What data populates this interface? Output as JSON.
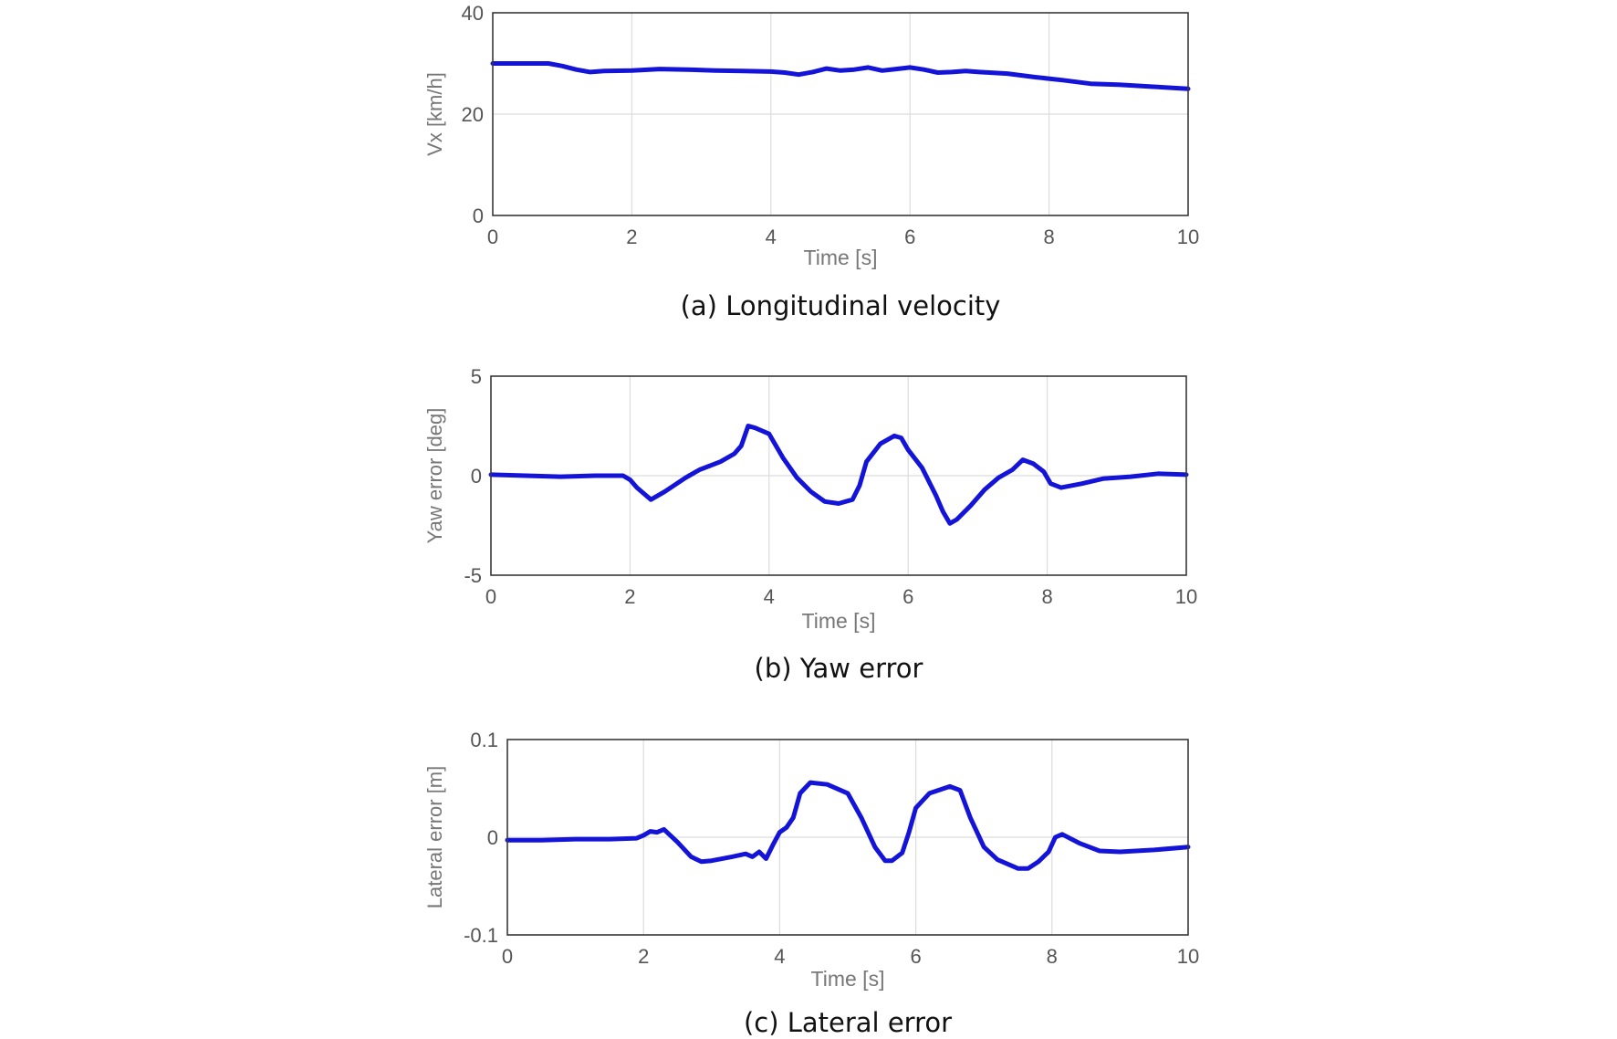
{
  "chart_data": [
    {
      "type": "line",
      "caption": "(a) Longitudinal velocity",
      "xlabel": "Time [s]",
      "ylabel": "Vx [km/h]",
      "xlim": [
        0,
        10
      ],
      "ylim": [
        0,
        40
      ],
      "xticks": [
        "0",
        "2",
        "4",
        "6",
        "8",
        "10"
      ],
      "yticks": [
        "0",
        "20",
        "40"
      ],
      "grid": true,
      "line_color": "#1414d8",
      "series": [
        {
          "x": [
            0,
            0.4,
            0.8,
            1.0,
            1.2,
            1.4,
            1.6,
            2.0,
            2.4,
            2.8,
            3.2,
            3.6,
            4.0,
            4.2,
            4.4,
            4.6,
            4.8,
            5.0,
            5.2,
            5.4,
            5.6,
            5.8,
            6.0,
            6.2,
            6.4,
            6.6,
            6.8,
            7.0,
            7.4,
            7.8,
            8.2,
            8.6,
            9.0,
            9.5,
            10.0
          ],
          "y": [
            30.0,
            30.0,
            30.0,
            29.5,
            28.8,
            28.3,
            28.5,
            28.6,
            28.9,
            28.8,
            28.6,
            28.5,
            28.4,
            28.2,
            27.8,
            28.3,
            29.0,
            28.6,
            28.8,
            29.2,
            28.6,
            28.9,
            29.2,
            28.8,
            28.2,
            28.3,
            28.5,
            28.3,
            28.0,
            27.3,
            26.7,
            26.0,
            25.8,
            25.4,
            25.0
          ]
        }
      ]
    },
    {
      "type": "line",
      "caption": "(b) Yaw error",
      "xlabel": "Time [s]",
      "ylabel": "Yaw error [deg]",
      "xlim": [
        0,
        10
      ],
      "ylim": [
        -5,
        5
      ],
      "xticks": [
        "0",
        "2",
        "4",
        "6",
        "8",
        "10"
      ],
      "yticks": [
        "-5",
        "0",
        "5"
      ],
      "grid": true,
      "line_color": "#1414d8",
      "series": [
        {
          "x": [
            0,
            0.5,
            1.0,
            1.5,
            1.9,
            2.0,
            2.1,
            2.2,
            2.3,
            2.5,
            2.8,
            3.0,
            3.3,
            3.5,
            3.6,
            3.7,
            3.8,
            4.0,
            4.2,
            4.4,
            4.6,
            4.8,
            5.0,
            5.2,
            5.3,
            5.4,
            5.6,
            5.8,
            5.9,
            6.0,
            6.2,
            6.4,
            6.5,
            6.6,
            6.7,
            6.9,
            7.1,
            7.3,
            7.5,
            7.65,
            7.8,
            7.95,
            8.05,
            8.2,
            8.5,
            8.8,
            9.2,
            9.6,
            10.0
          ],
          "y": [
            0.05,
            0.0,
            -0.05,
            0.0,
            0.0,
            -0.2,
            -0.6,
            -0.9,
            -1.2,
            -0.8,
            -0.1,
            0.3,
            0.7,
            1.1,
            1.5,
            2.5,
            2.4,
            2.1,
            0.9,
            -0.1,
            -0.8,
            -1.3,
            -1.4,
            -1.2,
            -0.5,
            0.7,
            1.6,
            2.0,
            1.9,
            1.3,
            0.4,
            -1.0,
            -1.8,
            -2.4,
            -2.2,
            -1.5,
            -0.7,
            -0.1,
            0.3,
            0.8,
            0.6,
            0.2,
            -0.4,
            -0.6,
            -0.4,
            -0.15,
            -0.05,
            0.1,
            0.05
          ]
        }
      ]
    },
    {
      "type": "line",
      "caption": "(c) Lateral error",
      "xlabel": "Time [s]",
      "ylabel": "Lateral error [m]",
      "xlim": [
        0,
        10
      ],
      "ylim": [
        -0.1,
        0.1
      ],
      "xticks": [
        "0",
        "2",
        "4",
        "6",
        "8",
        "10"
      ],
      "yticks": [
        "-0.1",
        "0",
        "0.1"
      ],
      "grid": true,
      "line_color": "#1414d8",
      "series": [
        {
          "x": [
            0,
            0.5,
            1.0,
            1.5,
            1.9,
            2.0,
            2.1,
            2.2,
            2.3,
            2.5,
            2.7,
            2.85,
            3.0,
            3.3,
            3.5,
            3.6,
            3.7,
            3.8,
            3.9,
            4.0,
            4.1,
            4.2,
            4.3,
            4.45,
            4.7,
            5.0,
            5.2,
            5.4,
            5.55,
            5.65,
            5.8,
            5.9,
            6.0,
            6.2,
            6.5,
            6.65,
            6.8,
            7.0,
            7.2,
            7.5,
            7.65,
            7.8,
            7.95,
            8.05,
            8.15,
            8.4,
            8.7,
            9.0,
            9.5,
            10.0
          ],
          "y": [
            -0.003,
            -0.003,
            -0.002,
            -0.002,
            -0.001,
            0.002,
            0.006,
            0.005,
            0.008,
            -0.005,
            -0.02,
            -0.025,
            -0.024,
            -0.02,
            -0.017,
            -0.02,
            -0.015,
            -0.022,
            -0.008,
            0.005,
            0.01,
            0.02,
            0.045,
            0.056,
            0.054,
            0.045,
            0.02,
            -0.01,
            -0.024,
            -0.024,
            -0.016,
            0.005,
            0.03,
            0.045,
            0.052,
            0.048,
            0.02,
            -0.01,
            -0.023,
            -0.032,
            -0.032,
            -0.025,
            -0.015,
            0.0,
            0.003,
            -0.006,
            -0.014,
            -0.015,
            -0.013,
            -0.01
          ]
        }
      ]
    }
  ]
}
